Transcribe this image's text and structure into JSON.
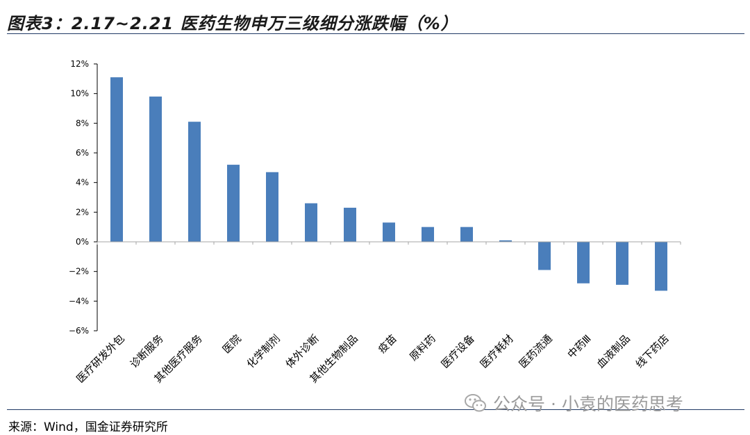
{
  "figure_title": "图表3：2.17~2.21 医药生物申万三级细分涨跌幅（%）",
  "source_note": "来源：Wind，国金证券研究所",
  "watermark": "公众号 · 小袁的医药思考",
  "colors": {
    "bar": "#4a7ebb",
    "axis": "#000000",
    "rule": "#1f3864"
  },
  "chart_data": {
    "type": "bar",
    "title": "",
    "xlabel": "",
    "ylabel": "",
    "categories": [
      "医疗研发外包",
      "诊断服务",
      "其他医疗服务",
      "医院",
      "化学制剂",
      "体外诊断",
      "其他生物制品",
      "疫苗",
      "原料药",
      "医疗设备",
      "医疗耗材",
      "医药流通",
      "中药Ⅲ",
      "血液制品",
      "线下药店"
    ],
    "values": [
      11.1,
      9.8,
      8.1,
      5.2,
      4.7,
      2.6,
      2.3,
      1.3,
      1.0,
      1.0,
      0.1,
      -1.9,
      -2.8,
      -2.9,
      -3.3
    ],
    "unit": "%",
    "ylim": [
      -6,
      12
    ],
    "yticks": [
      12,
      10,
      8,
      6,
      4,
      2,
      0,
      -2,
      -4,
      -6
    ],
    "ytick_labels": [
      "12%",
      "10%",
      "8%",
      "6%",
      "4%",
      "2%",
      "0%",
      "−2%",
      "−4%",
      "−6%"
    ],
    "grid": false,
    "legend": "none"
  }
}
